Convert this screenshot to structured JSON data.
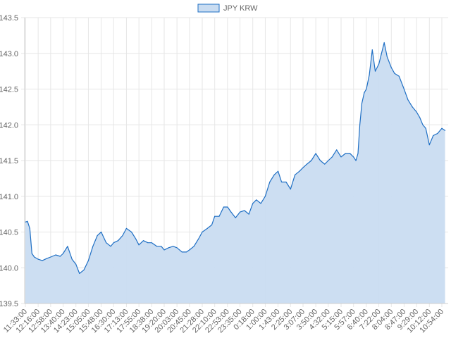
{
  "chart_data": {
    "type": "area",
    "legend": {
      "position": "top",
      "entries": [
        "JPY KRW"
      ]
    },
    "grid": true,
    "ylim": [
      139.5,
      143.5
    ],
    "y_ticks": [
      "143.5",
      "143.0",
      "142.5",
      "142.0",
      "141.5",
      "141.0",
      "140.5",
      "140.0",
      "139.5"
    ],
    "x_ticks": [
      "11:33:00",
      "12:16:00",
      "12:58:00",
      "13:40:00",
      "14:23:00",
      "15:05:00",
      "15:48:00",
      "16:30:00",
      "17:13:00",
      "17:55:00",
      "18:38:00",
      "19:20:00",
      "20:03:00",
      "20:45:00",
      "21:28:00",
      "22:10:00",
      "22:53:00",
      "23:35:00",
      "0:18:00",
      "1:00:00",
      "1:43:00",
      "2:25:00",
      "3:07:00",
      "3:50:00",
      "4:32:00",
      "5:15:00",
      "5:57:00",
      "6:40:00",
      "7:22:00",
      "8:04:00",
      "8:47:00",
      "9:29:00",
      "10:12:00",
      "10:54:00"
    ],
    "colors": {
      "line": "#1f6fc4",
      "fill": "#c9dcf1",
      "grid": "#e6e6e6"
    },
    "series": [
      {
        "name": "JPY KRW",
        "x": [
          "11:33:00",
          "11:40:00",
          "11:48:00",
          "11:55:00",
          "12:03:00",
          "12:16:00",
          "12:30:00",
          "12:45:00",
          "12:58:00",
          "13:15:00",
          "13:30:00",
          "13:40:00",
          "13:55:00",
          "14:10:00",
          "14:23:00",
          "14:35:00",
          "14:50:00",
          "15:05:00",
          "15:20:00",
          "15:35:00",
          "15:48:00",
          "16:05:00",
          "16:20:00",
          "16:30:00",
          "16:45:00",
          "17:00:00",
          "17:13:00",
          "17:30:00",
          "17:45:00",
          "17:55:00",
          "18:10:00",
          "18:25:00",
          "18:38:00",
          "18:55:00",
          "19:10:00",
          "19:20:00",
          "19:35:00",
          "19:50:00",
          "20:03:00",
          "20:20:00",
          "20:35:00",
          "20:45:00",
          "21:00:00",
          "21:15:00",
          "21:28:00",
          "21:45:00",
          "22:00:00",
          "22:10:00",
          "22:25:00",
          "22:40:00",
          "22:53:00",
          "23:05:00",
          "23:20:00",
          "23:35:00",
          "23:50:00",
          "0:05:00",
          "0:18:00",
          "0:30:00",
          "0:45:00",
          "1:00:00",
          "1:15:00",
          "1:30:00",
          "1:43:00",
          "1:55:00",
          "2:10:00",
          "2:25:00",
          "2:40:00",
          "2:55:00",
          "3:07:00",
          "3:20:00",
          "3:35:00",
          "3:50:00",
          "4:05:00",
          "4:20:00",
          "4:32:00",
          "4:45:00",
          "5:00:00",
          "5:15:00",
          "5:30:00",
          "5:45:00",
          "5:57:00",
          "6:05:00",
          "6:12:00",
          "6:18:00",
          "6:25:00",
          "6:33:00",
          "6:40:00",
          "6:50:00",
          "7:00:00",
          "7:10:00",
          "7:22:00",
          "7:30:00",
          "7:40:00",
          "7:50:00",
          "8:04:00",
          "8:15:00",
          "8:30:00",
          "8:47:00",
          "9:00:00",
          "9:15:00",
          "9:29:00",
          "9:40:00",
          "9:50:00",
          "10:00:00",
          "10:12:00",
          "10:25:00",
          "10:40:00",
          "10:54:00",
          "11:05:00"
        ],
        "values": [
          140.64,
          140.65,
          140.55,
          140.2,
          140.15,
          140.12,
          140.1,
          140.13,
          140.15,
          140.18,
          140.16,
          140.2,
          140.3,
          140.12,
          140.05,
          139.92,
          139.97,
          140.1,
          140.3,
          140.45,
          140.5,
          140.35,
          140.3,
          140.35,
          140.38,
          140.45,
          140.55,
          140.5,
          140.4,
          140.32,
          140.38,
          140.35,
          140.35,
          140.3,
          140.3,
          140.25,
          140.28,
          140.3,
          140.28,
          140.22,
          140.22,
          140.25,
          140.3,
          140.4,
          140.5,
          140.55,
          140.6,
          140.72,
          140.72,
          140.85,
          140.85,
          140.78,
          140.7,
          140.78,
          140.8,
          140.75,
          140.9,
          140.95,
          140.9,
          141.0,
          141.2,
          141.3,
          141.35,
          141.2,
          141.2,
          141.1,
          141.3,
          141.35,
          141.4,
          141.45,
          141.5,
          141.6,
          141.5,
          141.45,
          141.5,
          141.55,
          141.65,
          141.55,
          141.6,
          141.6,
          141.55,
          141.5,
          141.6,
          142.0,
          142.3,
          142.45,
          142.5,
          142.7,
          143.05,
          142.75,
          142.85,
          142.98,
          143.15,
          142.95,
          142.8,
          142.72,
          142.68,
          142.5,
          142.35,
          142.25,
          142.18,
          142.1,
          142.0,
          141.95,
          141.72,
          141.85,
          141.88,
          141.95,
          141.92
        ]
      }
    ]
  }
}
